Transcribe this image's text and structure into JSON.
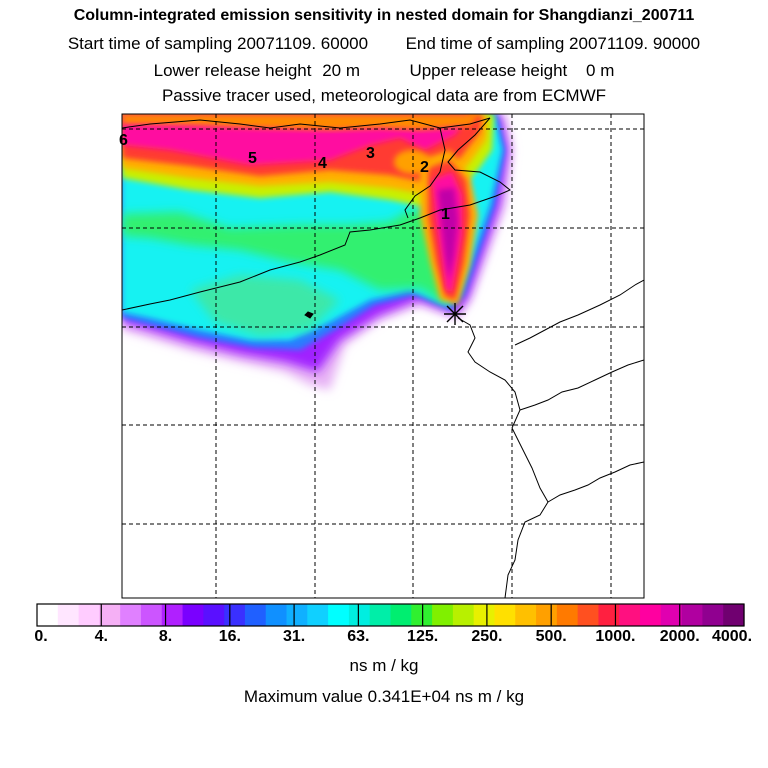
{
  "title": "Column-integrated emission sensitivity in nested domain for Shangdianzi_200711",
  "sampling": {
    "start_label": "Start time of sampling",
    "start_value": "20071109. 60000",
    "end_label": "End time of sampling",
    "end_value": "20071109. 90000"
  },
  "release": {
    "lower_label": "Lower release height",
    "lower_value": "20 m",
    "upper_label": "Upper release height",
    "upper_value": "0 m"
  },
  "note": "Passive tracer used, meteorological data are from ECMWF",
  "map": {
    "station_marker": "star-icon",
    "contour_labels": [
      "6",
      "5",
      "4",
      "3",
      "2",
      "1"
    ]
  },
  "colorbar": {
    "labels": [
      "0.",
      "4.",
      "8.",
      "16.",
      "31.",
      "63.",
      "125.",
      "250.",
      "500.",
      "1000.",
      "2000.",
      "4000."
    ],
    "units": "ns m / kg",
    "colors": [
      "#ffffff",
      "#ffe6ff",
      "#ffccff",
      "#f5b0f5",
      "#e080ff",
      "#cc55ff",
      "#b020ff",
      "#7a00ff",
      "#5a10ff",
      "#3a30ff",
      "#2060ff",
      "#1090ff",
      "#10b0ff",
      "#10d0ff",
      "#00ffff",
      "#00eee0",
      "#00eea8",
      "#00ee70",
      "#30f030",
      "#80f000",
      "#b8f000",
      "#e8f000",
      "#ffe000",
      "#ffc000",
      "#ffa000",
      "#ff7a00",
      "#ff5020",
      "#ff2040",
      "#ff1080",
      "#ff00a0",
      "#e000b0",
      "#b000a0",
      "#900090",
      "#700070"
    ]
  },
  "max_value": "Maximum value  0.341E+04 ns m / kg"
}
